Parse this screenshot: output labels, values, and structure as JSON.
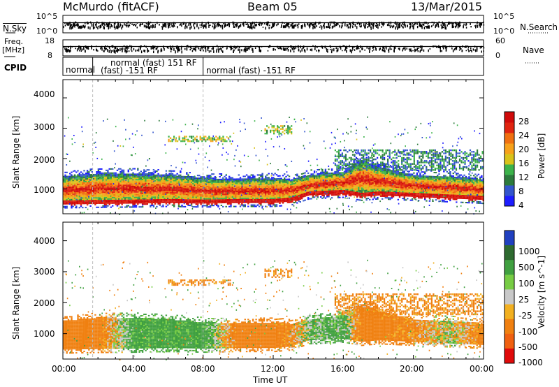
{
  "header": {
    "title": "McMurdo (fitACF)",
    "beam": "Beam 05",
    "date": "13/Mar/2015"
  },
  "side_labels": {
    "nsky": "N.Sky",
    "nsearch": "N.Search",
    "freq": "Freq.",
    "freq_unit": "[MHz]",
    "nave": "Nave",
    "cpid": "CPID",
    "nsky_scale_top": "10^5",
    "nsky_scale_bot": "10^0",
    "nsearch_scale_top": "10^5",
    "nsearch_scale_bot": "10^0",
    "freq_top": "18",
    "freq_bot": "8",
    "nave_top": "60",
    "nave_bot": "0"
  },
  "cpid_segments": [
    {
      "label": "normal",
      "start_h": 0.0
    },
    {
      "label": "normal (fast) 151 RF",
      "start_h": 1.7
    },
    {
      "label": "(fast) -151 RF",
      "start_h": 1.7
    },
    {
      "label": "normal (fast) -151 RF",
      "start_h": 8.0
    }
  ],
  "x_axis": {
    "label": "Time UT",
    "ticks": [
      "00:00",
      "04:00",
      "08:00",
      "12:00",
      "16:00",
      "20:00",
      "00:00"
    ]
  },
  "panels": {
    "power": {
      "ylabel": "Slant Range [km]",
      "yticks": [
        "1000",
        "2000",
        "3000",
        "4000"
      ],
      "cbar_label": "Power [dB]",
      "cbar_ticks": [
        "4",
        "8",
        "12",
        "16",
        "20",
        "24",
        "28"
      ],
      "cbar_colors": [
        "#1d1dff",
        "#3355cc",
        "#2c7a3c",
        "#3cb34a",
        "#d9c21a",
        "#f7a11a",
        "#f07010",
        "#e02410",
        "#d00a0a"
      ]
    },
    "velocity": {
      "ylabel": "Slant Range [km]",
      "yticks": [
        "1000",
        "2000",
        "3000",
        "4000"
      ],
      "cbar_label": "Velocity [m s^-1]",
      "cbar_ticks": [
        "1000",
        "500",
        "100",
        "25",
        "-25",
        "-100",
        "-500",
        "-1000"
      ],
      "cbar_colors": [
        "#2040c0",
        "#2e6a30",
        "#40a040",
        "#77cc44",
        "#c8c8c8",
        "#f2b020",
        "#f08010",
        "#f06010",
        "#e00a0a"
      ]
    }
  },
  "chart_data": [
    {
      "type": "heatmap",
      "title": "Beam 05",
      "xlabel": "Time UT",
      "ylabel": "Slant Range [km]",
      "xlim_hours": [
        0,
        24
      ],
      "ylim_km": [
        180,
        4600
      ],
      "colorbar": {
        "label": "Power [dB]",
        "range": [
          0,
          30
        ]
      },
      "bands": [
        {
          "name": "main_echo_band",
          "time_h": [
            0,
            2,
            4,
            6,
            8,
            10,
            12,
            13,
            14,
            16,
            17,
            18,
            20,
            22,
            24
          ],
          "lower_km": [
            450,
            470,
            480,
            500,
            480,
            500,
            500,
            550,
            750,
            800,
            700,
            750,
            700,
            650,
            600
          ],
          "upper_km": [
            1400,
            1500,
            1500,
            1450,
            1350,
            1300,
            1350,
            1300,
            1450,
            1550,
            1950,
            1700,
            1450,
            1400,
            1300
          ],
          "peak_power_db": 28
        },
        {
          "name": "upper_patch_1",
          "time_h": [
            6.0,
            9.5
          ],
          "range_km": [
            2550,
            2750
          ],
          "power_db": 14
        },
        {
          "name": "upper_patch_2",
          "time_h": [
            11.5,
            13.0
          ],
          "range_km": [
            2800,
            3100
          ],
          "power_db": 14
        },
        {
          "name": "rising_band",
          "time_h": [
            15.5,
            24
          ],
          "range_km": [
            1600,
            2300
          ],
          "power_db": 8
        }
      ]
    },
    {
      "type": "heatmap",
      "title": "Beam 05",
      "xlabel": "Time UT",
      "ylabel": "Slant Range [km]",
      "xlim_hours": [
        0,
        24
      ],
      "ylim_km": [
        180,
        4600
      ],
      "colorbar": {
        "label": "Velocity [m s^-1]",
        "range": [
          -1000,
          1000
        ]
      },
      "bands": [
        {
          "name": "main_echo_band",
          "time_h": [
            0,
            2,
            4,
            6,
            8,
            10,
            12,
            13,
            14,
            16,
            17,
            18,
            20,
            22,
            24
          ],
          "lower_km": [
            450,
            470,
            480,
            500,
            480,
            500,
            500,
            550,
            750,
            800,
            700,
            750,
            700,
            650,
            600
          ],
          "upper_km": [
            1400,
            1500,
            1500,
            1450,
            1350,
            1300,
            1350,
            1300,
            1450,
            1550,
            1950,
            1700,
            1450,
            1400,
            1300
          ],
          "dominant_velocity": [
            -150,
            -150,
            120,
            120,
            120,
            -150,
            -150,
            -100,
            50,
            100,
            -150,
            -150,
            -100,
            20,
            -150
          ]
        },
        {
          "name": "upper_patch_1",
          "time_h": [
            6.0,
            9.5
          ],
          "range_km": [
            2550,
            2750
          ],
          "velocity": -100
        },
        {
          "name": "upper_patch_2",
          "time_h": [
            11.5,
            13.0
          ],
          "range_km": [
            2800,
            3100
          ],
          "velocity": -100
        },
        {
          "name": "rising_band",
          "time_h": [
            15.5,
            24
          ],
          "range_km": [
            1600,
            2300
          ],
          "velocity": -100
        }
      ]
    }
  ]
}
